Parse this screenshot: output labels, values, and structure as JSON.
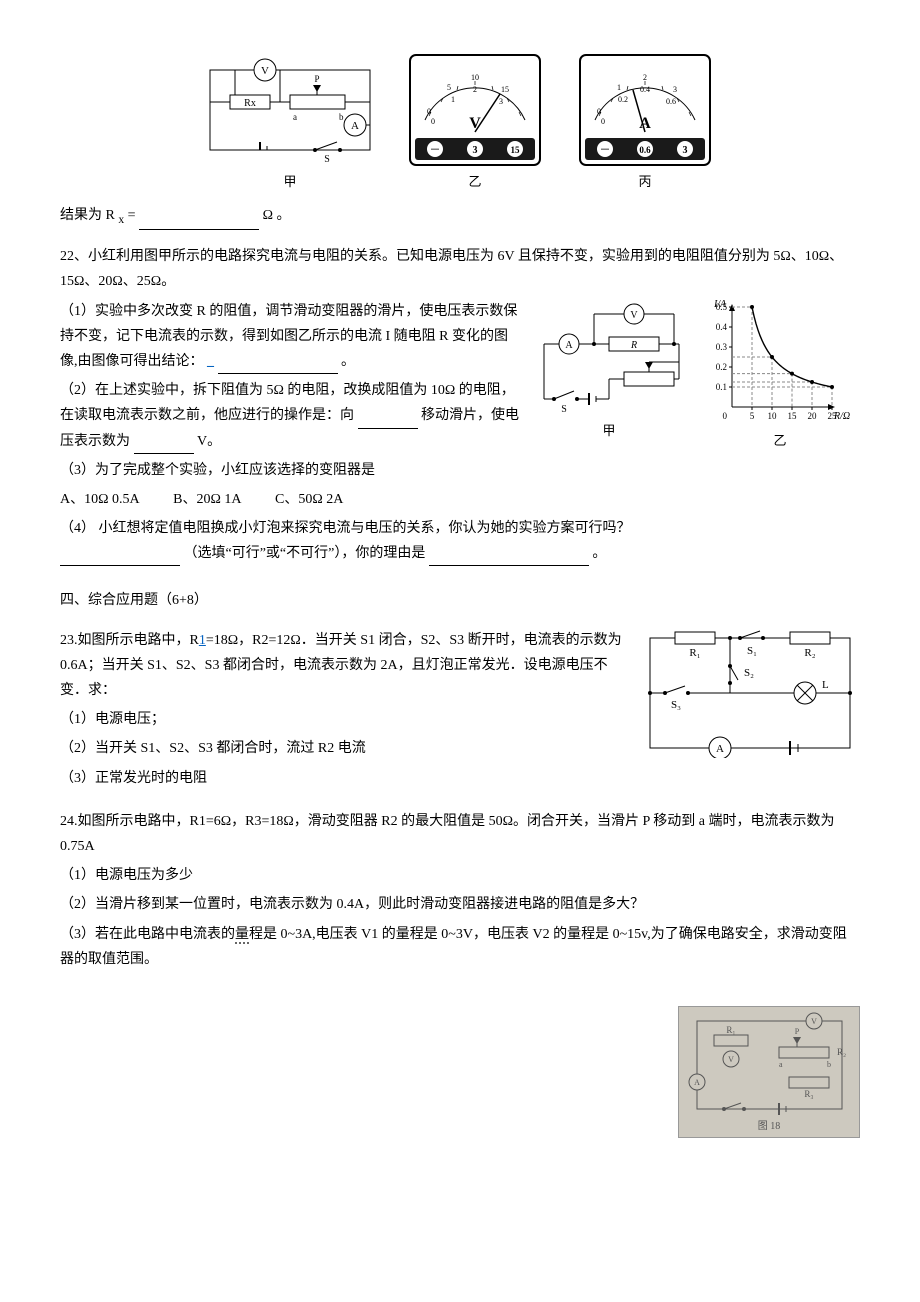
{
  "q21": {
    "result_prefix": "结果为 R",
    "result_sub": "x",
    "result_suffix": " =",
    "unit": "Ω 。",
    "caption_jia": "甲",
    "caption_yi": "乙",
    "caption_bing": "丙",
    "circuit": {
      "V": "V",
      "A": "A",
      "Rx": "Rx",
      "P": "P",
      "a": "a",
      "b": "b",
      "S": "S"
    },
    "voltmeter": {
      "unit": "V",
      "terminals": [
        "－",
        "3",
        "15"
      ],
      "major": [
        0,
        1,
        2,
        3
      ],
      "minor": [
        0,
        5,
        10,
        15
      ]
    },
    "ammeter": {
      "unit": "A",
      "terminals": [
        "－",
        "0.6",
        "3"
      ],
      "major": [
        0,
        1,
        2,
        3
      ],
      "minor": [
        0,
        0.2,
        0.4,
        0.6
      ]
    },
    "meter_colors": {
      "face": "#ffffff",
      "panel": "#1a1a1a",
      "panel_text": "#ffffff",
      "needle": "#000000"
    }
  },
  "q22": {
    "number": "22、",
    "stem": "小红利用图甲所示的电路探究电流与电阻的关系。已知电源电压为 6V 且保持不变，实验用到的电阻阻值分别为 5Ω、10Ω、15Ω、20Ω、25Ω。",
    "p1_a": "（1）实验中多次改变 R 的阻值，调节滑动变阻器的滑片，使电压表示数保持不变，记下电流表的示数，得到如图乙所示的电流 I 随电阻 R 变化的图像,由图像可得出结论：",
    "p1_link": "_",
    "p1_end": "。",
    "p2_a": "（2）在上述实验中，拆下阻值为 5Ω 的电阻，改换成阻值为 10Ω 的电阻，在读取电流表示数之前，他应进行的操作是：向",
    "p2_b": "移动滑片，使电压表示数为",
    "p2_c": "V。",
    "p3": "（3）为了完成整个实验，小红应该选择的变阻器是",
    "optA": "A、10Ω   0.5A",
    "optB": "B、20Ω   1A",
    "optC": "C、50Ω   2A",
    "p4_a": "（4）  小红想将定值电阻换成小灯泡来探究电流与电压的关系，你认为她的实验方案可行吗？",
    "p4_b": "（选填“可行”或“不可行”），你的理由是",
    "p4_c": "。",
    "caption_jia": "甲",
    "caption_yi": "乙",
    "circuit": {
      "V": "V",
      "A": "A",
      "R": "R",
      "S": "S"
    },
    "chart": {
      "type": "scatter-line",
      "xlabel": "R/Ω",
      "ylabel": "I/A",
      "xlim": [
        0,
        25
      ],
      "ylim": [
        0,
        0.5
      ],
      "xticks": [
        0,
        5,
        10,
        15,
        20,
        25
      ],
      "yticks": [
        0,
        0.1,
        0.2,
        0.3,
        0.4,
        0.5
      ],
      "points_x": [
        5,
        10,
        15,
        20,
        25
      ],
      "points_y": [
        0.5,
        0.25,
        0.167,
        0.125,
        0.1
      ],
      "curve_color": "#000000",
      "grid_color": "#888888",
      "bg": "#ffffff",
      "fontsize": 9
    }
  },
  "section4": "四、综合应用题（6+8）",
  "q23": {
    "number": "23.",
    "stem_a": "如图所示电路中，R",
    "stem_link": "1",
    "stem_b": "=18Ω，R2=12Ω．当开关 S1 闭合，S2、S3 断开时，电流表的示数为 0.6A；当开关 S1、S2、S3 都闭合时，电流表示数为 2A，且灯泡正常发光．设电源电压不变．求：",
    "p1": "（1）电源电压；",
    "p2": "（2）当开关 S1、S2、S3 都闭合时，流过 R2 电流",
    "p3": "（3）正常发光时的电阻",
    "circuit": {
      "R1": "R₁",
      "R2": "R₂",
      "S1": "S₁",
      "S2": "S₂",
      "S3": "S₃",
      "L": "L",
      "A": "A"
    }
  },
  "q24": {
    "number": "24.",
    "stem": "如图所示电路中，R1=6Ω，R3=18Ω，滑动变阻器 R2 的最大阻值是 50Ω。闭合开关，当滑片 P 移动到 a 端时，电流表示数为 0.75A",
    "p1": "（1）电源电压为多少",
    "p2": "（2）当滑片移到某一位置时，电流表示数为 0.4A，则此时滑动变阻器接进电路的阻值是多大？",
    "p3_a": "（3）若在此电路中电流表的",
    "p3_u": "量",
    "p3_b": "程是 0~3A,电压表 V1 的量程是 0~3V，电压表 V2 的量程是 0~15v,为了确保电路安全，求滑动变阻器的取值范围。",
    "photo_caption": "图 18",
    "photo_labels": {
      "R1": "R₁",
      "P": "P",
      "R2": "R₂",
      "R3": "R₃",
      "a": "a",
      "b": "b",
      "V": "V",
      "A": "A"
    }
  }
}
